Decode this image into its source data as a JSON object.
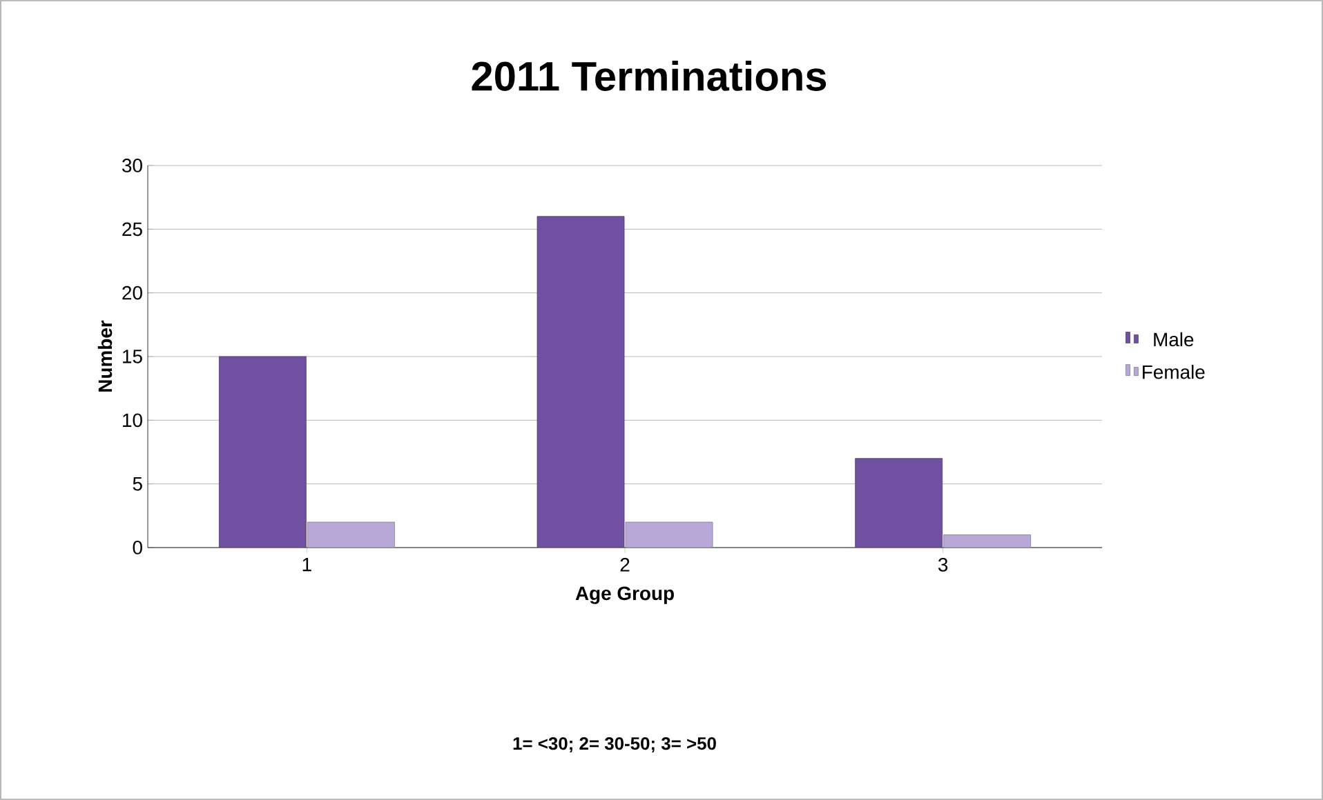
{
  "chart_data": {
    "type": "bar",
    "title": "2011 Terminations",
    "xlabel": "Age Group",
    "ylabel": "Number",
    "categories": [
      "1",
      "2",
      "3"
    ],
    "series": [
      {
        "name": "Male",
        "color": "#7050a0",
        "values": [
          15,
          26,
          7
        ]
      },
      {
        "name": "Female",
        "color": "#b8a8d8",
        "values": [
          2,
          2,
          1
        ]
      }
    ],
    "ylim": [
      0,
      30
    ],
    "yticks": [
      0,
      5,
      10,
      15,
      20,
      25,
      30
    ],
    "grid": "y",
    "legend": "right",
    "annotations": [
      "1= <30; 2= 30-50; 3= >50"
    ]
  }
}
